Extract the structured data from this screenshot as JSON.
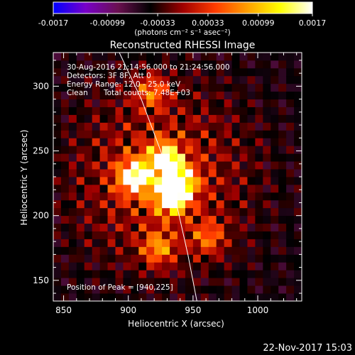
{
  "chart_data": {
    "type": "heatmap",
    "title": "Reconstructed RHESSI Image",
    "xlabel": "Heliocentric X (arcsec)",
    "ylabel": "Heliocentric Y (arcsec)",
    "xlim": [
      842,
      1034
    ],
    "ylim": [
      134,
      326
    ],
    "x_ticks": [
      "850",
      "900",
      "950",
      "1000"
    ],
    "x_tick_values": [
      850,
      900,
      950,
      1000
    ],
    "y_ticks": [
      "150",
      "200",
      "250",
      "300"
    ],
    "y_tick_values": [
      150,
      200,
      250,
      300
    ],
    "colorbar": {
      "min": -0.0017,
      "max": 0.0017,
      "tick_labels": [
        "-0.0017",
        "-0.00099",
        "-0.00033",
        "0.00033",
        "0.00099",
        "0.0017"
      ],
      "tick_values": [
        -0.0017,
        -0.00099,
        -0.00033,
        0.00033,
        0.00099,
        0.0017
      ],
      "unit_label": "(photons cm⁻² s⁻¹ asec⁻²)",
      "colormap": [
        "#0000ff",
        "#7800c8",
        "#6a1050",
        "#000000",
        "#a00000",
        "#ff3c00",
        "#ffa000",
        "#ffff00",
        "#ffffff"
      ]
    },
    "annotations": {
      "time_range": "30-Aug-2016 21:14:56.000 to 21:24:56.000",
      "detectors": "Detectors: 3F 8F, Att 0",
      "energy": "Energy Range: 12.0 - 25.0 keV",
      "method": "Clean",
      "counts": "Total counts: 7.48E+03",
      "peak": "Position of Peak = [940,225]"
    },
    "peak_position": [
      940,
      225
    ],
    "sources": [
      {
        "x": 905,
        "y": 230,
        "amp": 1.0
      },
      {
        "x": 928,
        "y": 244,
        "amp": 0.9
      },
      {
        "x": 939,
        "y": 226,
        "amp": 1.0
      },
      {
        "x": 933,
        "y": 214,
        "amp": 0.9
      },
      {
        "x": 923,
        "y": 175,
        "amp": 0.55
      },
      {
        "x": 962,
        "y": 183,
        "amp": 0.45
      },
      {
        "x": 918,
        "y": 296,
        "amp": 0.5
      }
    ],
    "limb_curve": [
      [
        893,
        326
      ],
      [
        910,
        290
      ],
      [
        925,
        250
      ],
      [
        937,
        210
      ],
      [
        946,
        170
      ],
      [
        953,
        134
      ]
    ],
    "date_stamp": "22-Nov-2017 15:03"
  }
}
